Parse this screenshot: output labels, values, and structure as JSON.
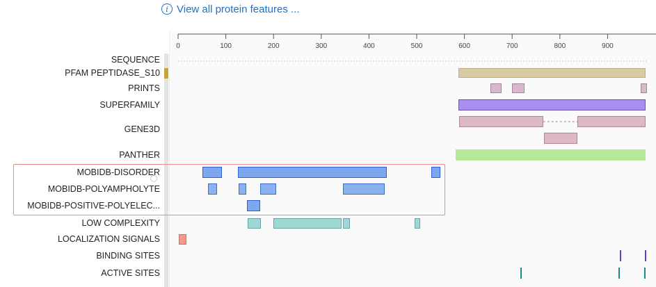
{
  "header": {
    "link_text": "View all protein features ...",
    "info_icon": "info-icon"
  },
  "axis": {
    "ticks": [
      0,
      100,
      200,
      300,
      400,
      500,
      600,
      700,
      800,
      900
    ]
  },
  "rows": [
    {
      "id": "sequence",
      "label": "SEQUENCE"
    },
    {
      "id": "pfam",
      "label": "PFAM PEPTIDASE_S10"
    },
    {
      "id": "prints",
      "label": "PRINTS"
    },
    {
      "id": "superfamily",
      "label": "SUPERFAMILY"
    },
    {
      "id": "gene3d",
      "label": "GENE3D"
    },
    {
      "id": "panther",
      "label": "PANTHER"
    },
    {
      "id": "mobidb_disorder",
      "label": "MOBIDB-DISORDER"
    },
    {
      "id": "mobidb_polyampholyte",
      "label": "MOBIDB-POLYAMPHOLYTE"
    },
    {
      "id": "mobidb_positive",
      "label": "MOBIDB-POSITIVE-POLYELEC..."
    },
    {
      "id": "low_complexity",
      "label": "LOW COMPLEXITY"
    },
    {
      "id": "localization",
      "label": "LOCALIZATION SIGNALS"
    },
    {
      "id": "binding",
      "label": "BINDING SITES"
    },
    {
      "id": "active",
      "label": "ACTIVE SITES"
    }
  ],
  "features": {
    "pfam": [
      [
        587,
        980
      ]
    ],
    "prints": [
      [
        655,
        678
      ],
      [
        700,
        726
      ],
      [
        970,
        990
      ]
    ],
    "superfamily": [
      [
        587,
        980
      ]
    ],
    "gene3d": [
      [
        589,
        765
      ],
      [
        837,
        980
      ],
      [
        767,
        837
      ]
    ],
    "panther": [
      [
        582,
        980
      ]
    ],
    "mobidb_disorder": [
      [
        51,
        92
      ],
      [
        125,
        438
      ],
      [
        530,
        549
      ]
    ],
    "mobidb_polyampholyte": [
      [
        63,
        82
      ],
      [
        127,
        143
      ],
      [
        172,
        206
      ],
      [
        345,
        433
      ]
    ],
    "mobidb_positive": [
      [
        145,
        172
      ]
    ],
    "low_complexity": [
      [
        146,
        173
      ],
      [
        200,
        343
      ],
      [
        345,
        360
      ],
      [
        496,
        508
      ]
    ],
    "localization": [
      [
        1,
        18
      ]
    ],
    "binding": [
      [
        926,
        928
      ],
      [
        978,
        980
      ]
    ],
    "active": [
      [
        717,
        719
      ],
      [
        923,
        925
      ],
      [
        977,
        979
      ]
    ]
  },
  "colors": {
    "pfam": "#d6cba3",
    "pfam_marker": "#c9a13a",
    "prints": "#d9b8cc",
    "superfamily": "#a98ef2",
    "gene3d": "#ddb8c7",
    "panther": "#b5e899",
    "mobidb": "#7ea7f0",
    "mobidb_polyampholyte": "#8bb1ee",
    "low_complexity": "#9fd8d4",
    "localization": "#f6998a",
    "binding": "#5a40d8",
    "active": "#1a8c86",
    "highlight": "#f08a80"
  }
}
